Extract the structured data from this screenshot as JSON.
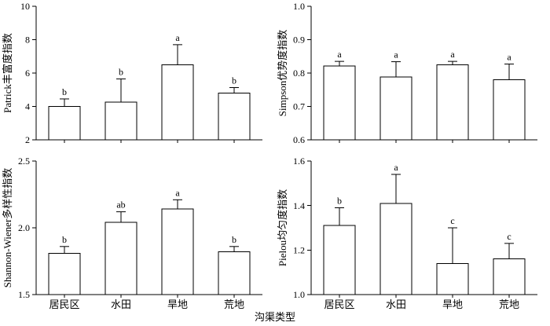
{
  "figure": {
    "xlabel": "沟渠类型",
    "background": "#ffffff",
    "bar_fill": "#ffffff",
    "bar_stroke": "#000000"
  },
  "chart_data": [
    {
      "type": "bar",
      "id": "patrick-richness",
      "ylabel": "Patrick丰富度指数",
      "categories": [
        "居民区",
        "水田",
        "旱地",
        "荒地"
      ],
      "values": [
        4.0,
        4.25,
        6.5,
        4.8
      ],
      "errors": [
        0.45,
        1.4,
        1.2,
        0.33
      ],
      "sig_labels": [
        "b",
        "b",
        "a",
        "b"
      ],
      "ylim": [
        2,
        10
      ],
      "yticks": [
        2,
        4,
        6,
        8,
        10
      ],
      "ytick_labels": [
        "2",
        "4",
        "6",
        "8",
        "10"
      ],
      "grid": false,
      "legend": "none"
    },
    {
      "type": "bar",
      "id": "simpson-dominance",
      "ylabel": "Simpson优势度指数",
      "categories": [
        "居民区",
        "水田",
        "旱地",
        "荒地"
      ],
      "values": [
        0.821,
        0.788,
        0.825,
        0.78
      ],
      "errors": [
        0.014,
        0.046,
        0.01,
        0.047
      ],
      "sig_labels": [
        "a",
        "a",
        "a",
        "a"
      ],
      "ylim": [
        0.6,
        1.0
      ],
      "yticks": [
        0.6,
        0.7,
        0.8,
        0.9,
        1.0
      ],
      "ytick_labels": [
        "0.6",
        "0.7",
        "0.8",
        "0.9",
        "1.0"
      ],
      "grid": false,
      "legend": "none"
    },
    {
      "type": "bar",
      "id": "shannon-wiener-diversity",
      "ylabel": "Shannon-Wiener多样性指数",
      "categories": [
        "居民区",
        "水田",
        "旱地",
        "荒地"
      ],
      "values": [
        1.81,
        2.04,
        2.14,
        1.82
      ],
      "errors": [
        0.05,
        0.08,
        0.07,
        0.04
      ],
      "sig_labels": [
        "b",
        "ab",
        "a",
        "b"
      ],
      "ylim": [
        1.5,
        2.5
      ],
      "yticks": [
        1.5,
        2.0,
        2.5
      ],
      "ytick_labels": [
        "1.5",
        "2.0",
        "2.5"
      ],
      "grid": false,
      "legend": "none"
    },
    {
      "type": "bar",
      "id": "pielou-evenness",
      "ylabel": "Pielou均匀度指数",
      "categories": [
        "居民区",
        "水田",
        "旱地",
        "荒地"
      ],
      "values": [
        1.31,
        1.41,
        1.14,
        1.16
      ],
      "errors": [
        0.08,
        0.13,
        0.16,
        0.07
      ],
      "sig_labels": [
        "b",
        "a",
        "c",
        "c"
      ],
      "ylim": [
        1.0,
        1.6
      ],
      "yticks": [
        1.0,
        1.2,
        1.4,
        1.6
      ],
      "ytick_labels": [
        "1.0",
        "1.2",
        "1.4",
        "1.6"
      ],
      "grid": false,
      "legend": "none"
    }
  ]
}
